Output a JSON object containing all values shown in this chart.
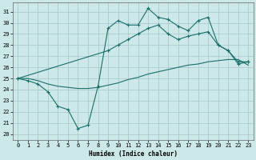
{
  "xlabel": "Humidex (Indice chaleur)",
  "bg_color": "#cce8e8",
  "line_color": "#1a6e6a",
  "grid_color": "#aacccc",
  "xlim": [
    -0.5,
    23.5
  ],
  "ylim": [
    19.5,
    31.8
  ],
  "xticks": [
    0,
    1,
    2,
    3,
    4,
    5,
    6,
    7,
    8,
    9,
    10,
    11,
    12,
    13,
    14,
    15,
    16,
    17,
    18,
    19,
    20,
    21,
    22,
    23
  ],
  "yticks": [
    20,
    21,
    22,
    23,
    24,
    25,
    26,
    27,
    28,
    29,
    30,
    31
  ],
  "line1_x": [
    0,
    1,
    2,
    3,
    4,
    5,
    6,
    7,
    8,
    9,
    10,
    11,
    12,
    13,
    14,
    15,
    16,
    17,
    18,
    19,
    20,
    21,
    22,
    23
  ],
  "line1_y": [
    25.0,
    24.8,
    24.5,
    23.8,
    22.5,
    22.2,
    20.5,
    20.8,
    24.3,
    29.5,
    30.2,
    29.8,
    29.8,
    31.3,
    30.5,
    30.3,
    29.7,
    29.3,
    30.2,
    30.5,
    28.0,
    27.5,
    26.3,
    26.5
  ],
  "line2_x": [
    0,
    9,
    10,
    11,
    12,
    13,
    14,
    15,
    16,
    17,
    18,
    19,
    20,
    21,
    22,
    23
  ],
  "line2_y": [
    25.0,
    27.5,
    28.0,
    28.5,
    29.0,
    29.5,
    29.8,
    29.0,
    28.5,
    28.8,
    29.0,
    29.2,
    28.0,
    27.5,
    26.5,
    26.5
  ],
  "line3_x": [
    0,
    1,
    2,
    3,
    4,
    5,
    6,
    7,
    8,
    9,
    10,
    11,
    12,
    13,
    14,
    15,
    16,
    17,
    18,
    19,
    20,
    21,
    22,
    23
  ],
  "line3_y": [
    25.0,
    25.0,
    24.8,
    24.5,
    24.3,
    24.2,
    24.1,
    24.1,
    24.2,
    24.4,
    24.6,
    24.9,
    25.1,
    25.4,
    25.6,
    25.8,
    26.0,
    26.2,
    26.3,
    26.5,
    26.6,
    26.7,
    26.7,
    26.2
  ]
}
